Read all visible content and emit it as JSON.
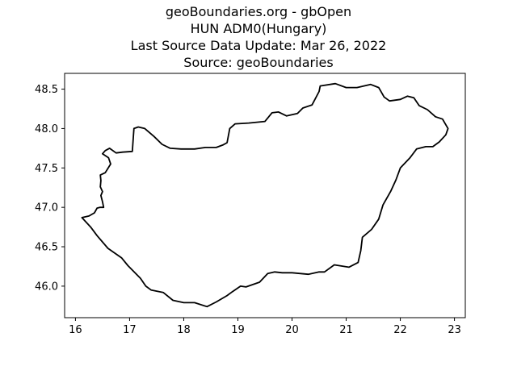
{
  "title_lines": [
    "geoBoundaries.org - gbOpen",
    "HUN ADM0(Hungary)",
    "Last Source Data Update: Mar 26, 2022",
    "Source: geoBoundaries"
  ],
  "chart_data": {
    "type": "map-outline",
    "xlim": [
      15.8,
      23.2
    ],
    "ylim": [
      45.6,
      48.7
    ],
    "x_ticks": [
      "16",
      "17",
      "18",
      "19",
      "20",
      "21",
      "22",
      "23"
    ],
    "y_ticks": [
      "46.0",
      "46.5",
      "47.0",
      "47.5",
      "48.0",
      "48.5"
    ],
    "boundary": [
      [
        16.12,
        46.87
      ],
      [
        16.25,
        46.89
      ],
      [
        16.35,
        46.93
      ],
      [
        16.4,
        46.99
      ],
      [
        16.45,
        47.0
      ],
      [
        16.52,
        47.0
      ],
      [
        16.5,
        47.07
      ],
      [
        16.47,
        47.15
      ],
      [
        16.5,
        47.2
      ],
      [
        16.46,
        47.26
      ],
      [
        16.47,
        47.34
      ],
      [
        16.46,
        47.41
      ],
      [
        16.55,
        47.44
      ],
      [
        16.65,
        47.55
      ],
      [
        16.61,
        47.63
      ],
      [
        16.5,
        47.68
      ],
      [
        16.55,
        47.72
      ],
      [
        16.63,
        47.75
      ],
      [
        16.75,
        47.69
      ],
      [
        16.87,
        47.7
      ],
      [
        17.05,
        47.71
      ],
      [
        17.08,
        48.0
      ],
      [
        17.16,
        48.02
      ],
      [
        17.28,
        48.0
      ],
      [
        17.45,
        47.9
      ],
      [
        17.6,
        47.8
      ],
      [
        17.75,
        47.75
      ],
      [
        17.95,
        47.74
      ],
      [
        18.2,
        47.74
      ],
      [
        18.4,
        47.76
      ],
      [
        18.6,
        47.76
      ],
      [
        18.72,
        47.79
      ],
      [
        18.8,
        47.82
      ],
      [
        18.85,
        48.0
      ],
      [
        18.95,
        48.06
      ],
      [
        19.2,
        48.07
      ],
      [
        19.5,
        48.09
      ],
      [
        19.63,
        48.2
      ],
      [
        19.75,
        48.21
      ],
      [
        19.9,
        48.16
      ],
      [
        20.1,
        48.19
      ],
      [
        20.2,
        48.26
      ],
      [
        20.37,
        48.3
      ],
      [
        20.5,
        48.47
      ],
      [
        20.52,
        48.54
      ],
      [
        20.8,
        48.57
      ],
      [
        21.0,
        48.52
      ],
      [
        21.2,
        48.52
      ],
      [
        21.45,
        48.56
      ],
      [
        21.6,
        48.52
      ],
      [
        21.7,
        48.4
      ],
      [
        21.8,
        48.35
      ],
      [
        22.0,
        48.37
      ],
      [
        22.13,
        48.41
      ],
      [
        22.25,
        48.39
      ],
      [
        22.35,
        48.29
      ],
      [
        22.5,
        48.24
      ],
      [
        22.65,
        48.15
      ],
      [
        22.78,
        48.12
      ],
      [
        22.88,
        48.0
      ],
      [
        22.84,
        47.92
      ],
      [
        22.72,
        47.83
      ],
      [
        22.6,
        47.77
      ],
      [
        22.47,
        47.77
      ],
      [
        22.3,
        47.74
      ],
      [
        22.18,
        47.63
      ],
      [
        22.0,
        47.5
      ],
      [
        21.92,
        47.35
      ],
      [
        21.82,
        47.2
      ],
      [
        21.68,
        47.03
      ],
      [
        21.6,
        46.85
      ],
      [
        21.47,
        46.72
      ],
      [
        21.3,
        46.62
      ],
      [
        21.27,
        46.45
      ],
      [
        21.22,
        46.3
      ],
      [
        21.05,
        46.24
      ],
      [
        20.78,
        46.27
      ],
      [
        20.6,
        46.18
      ],
      [
        20.5,
        46.18
      ],
      [
        20.3,
        46.15
      ],
      [
        20.0,
        46.17
      ],
      [
        19.82,
        46.17
      ],
      [
        19.68,
        46.18
      ],
      [
        19.55,
        46.16
      ],
      [
        19.4,
        46.05
      ],
      [
        19.15,
        45.99
      ],
      [
        19.05,
        46.0
      ],
      [
        18.9,
        45.93
      ],
      [
        18.8,
        45.88
      ],
      [
        18.6,
        45.8
      ],
      [
        18.43,
        45.74
      ],
      [
        18.2,
        45.79
      ],
      [
        18.0,
        45.79
      ],
      [
        17.8,
        45.82
      ],
      [
        17.62,
        45.92
      ],
      [
        17.4,
        45.95
      ],
      [
        17.3,
        46.0
      ],
      [
        17.2,
        46.1
      ],
      [
        16.97,
        46.26
      ],
      [
        16.85,
        46.36
      ],
      [
        16.6,
        46.48
      ],
      [
        16.4,
        46.64
      ],
      [
        16.28,
        46.75
      ],
      [
        16.12,
        46.87
      ]
    ]
  }
}
